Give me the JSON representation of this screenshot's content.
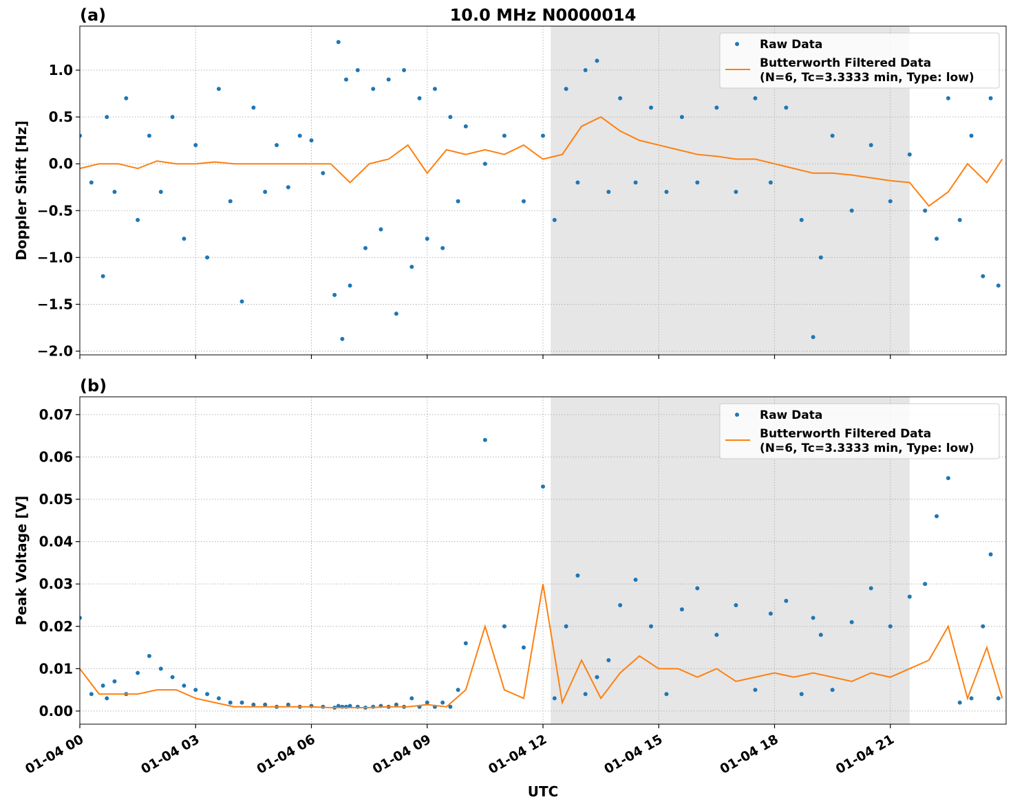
{
  "chart_data": [
    {
      "type": "line",
      "panel_label": "(a)",
      "title": "10.0 MHz N0000014",
      "ylabel": "Doppler Shift [Hz]",
      "xlim": [
        0,
        24
      ],
      "ylim": [
        -2.04,
        1.47
      ],
      "shade": [
        12.2,
        21.5
      ],
      "grid": true,
      "legend": "upper right",
      "show_xtick_labels": false,
      "xticks": [
        {
          "value": 0,
          "label": "01-04 00"
        },
        {
          "value": 3,
          "label": "01-04 03"
        },
        {
          "value": 6,
          "label": "01-04 06"
        },
        {
          "value": 9,
          "label": "01-04 09"
        },
        {
          "value": 12,
          "label": "01-04 12"
        },
        {
          "value": 15,
          "label": "01-04 15"
        },
        {
          "value": 18,
          "label": "01-04 18"
        },
        {
          "value": 21,
          "label": "01-04 21"
        }
      ],
      "yticks": [
        {
          "value": -2.0,
          "label": "−2.0"
        },
        {
          "value": -1.5,
          "label": "−1.5"
        },
        {
          "value": -1.0,
          "label": "−1.0"
        },
        {
          "value": -0.5,
          "label": "−0.5"
        },
        {
          "value": 0.0,
          "label": "0.0"
        },
        {
          "value": 0.5,
          "label": "0.5"
        },
        {
          "value": 1.0,
          "label": "1.0"
        }
      ],
      "series": [
        {
          "name": "Raw Data",
          "color": "#1f77b4",
          "mode": "markers",
          "x": [
            0,
            0.3,
            0.6,
            0.7,
            0.9,
            1.2,
            1.5,
            1.8,
            2.1,
            2.4,
            2.7,
            3.0,
            3.3,
            3.6,
            3.9,
            4.2,
            4.5,
            4.8,
            5.1,
            5.4,
            5.7,
            6.0,
            6.3,
            6.6,
            6.7,
            6.8,
            6.9,
            7.0,
            7.2,
            7.4,
            7.6,
            7.8,
            8.0,
            8.2,
            8.4,
            8.6,
            8.8,
            9.0,
            9.2,
            9.4,
            9.6,
            9.8,
            10.0,
            10.5,
            11.0,
            11.5,
            12.0,
            12.3,
            12.6,
            12.9,
            13.1,
            13.4,
            13.7,
            14.0,
            14.4,
            14.8,
            15.2,
            15.6,
            16.0,
            16.5,
            17.0,
            17.5,
            17.9,
            18.3,
            18.7,
            19.0,
            19.2,
            19.5,
            20.0,
            20.5,
            21.0,
            21.5,
            21.9,
            22.2,
            22.5,
            22.8,
            23.1,
            23.4,
            23.6,
            23.8
          ],
          "values": [
            0.3,
            -0.2,
            -1.2,
            0.5,
            -0.3,
            0.7,
            -0.6,
            0.3,
            -0.3,
            0.5,
            -0.8,
            0.2,
            -1.0,
            0.8,
            -0.4,
            -1.47,
            0.6,
            -0.3,
            0.2,
            -0.25,
            0.3,
            0.25,
            -0.1,
            -1.4,
            1.3,
            -1.87,
            0.9,
            -1.3,
            1.0,
            -0.9,
            0.8,
            -0.7,
            0.9,
            -1.6,
            1.0,
            -1.1,
            0.7,
            -0.8,
            0.8,
            -0.9,
            0.5,
            -0.4,
            0.4,
            0.0,
            0.3,
            -0.4,
            0.3,
            -0.6,
            0.8,
            -0.2,
            1.0,
            1.1,
            -0.3,
            0.7,
            -0.2,
            0.6,
            -0.3,
            0.5,
            -0.2,
            0.6,
            -0.3,
            0.7,
            -0.2,
            0.6,
            -0.6,
            -1.85,
            -1.0,
            0.3,
            -0.5,
            0.2,
            -0.4,
            0.1,
            -0.5,
            -0.8,
            0.7,
            -0.6,
            0.3,
            -1.2,
            0.7,
            -1.3
          ]
        },
        {
          "name": "Butterworth Filtered Data\n(N=6, Tc=3.3333 min, Type: low)",
          "color": "#ff7f0e",
          "mode": "line",
          "x": [
            0,
            0.5,
            1,
            1.5,
            2,
            2.5,
            3,
            3.5,
            4,
            4.5,
            5,
            5.5,
            6,
            6.5,
            7,
            7.5,
            8,
            8.5,
            9,
            9.5,
            10,
            10.5,
            11,
            11.5,
            12,
            12.5,
            13,
            13.5,
            14,
            14.5,
            15,
            15.5,
            16,
            16.5,
            17,
            17.5,
            18,
            18.5,
            19,
            19.5,
            20,
            20.5,
            21,
            21.5,
            22,
            22.5,
            23,
            23.5,
            23.9
          ],
          "values": [
            -0.05,
            0.0,
            0.0,
            -0.05,
            0.03,
            0.0,
            0.0,
            0.02,
            0.0,
            0.0,
            0.0,
            0.0,
            0.0,
            0.0,
            -0.2,
            0.0,
            0.05,
            0.2,
            -0.1,
            0.15,
            0.1,
            0.15,
            0.1,
            0.2,
            0.05,
            0.1,
            0.4,
            0.5,
            0.35,
            0.25,
            0.2,
            0.15,
            0.1,
            0.08,
            0.05,
            0.05,
            0.0,
            -0.05,
            -0.1,
            -0.1,
            -0.12,
            -0.15,
            -0.18,
            -0.2,
            -0.45,
            -0.3,
            0.0,
            -0.2,
            0.05
          ]
        }
      ]
    },
    {
      "type": "line",
      "panel_label": "(b)",
      "ylabel": "Peak Voltage [V]",
      "xlabel": "UTC",
      "xlim": [
        0,
        24
      ],
      "ylim": [
        -0.0031,
        0.0742
      ],
      "shade": [
        12.2,
        21.5
      ],
      "grid": true,
      "legend": "upper right",
      "show_xtick_labels": true,
      "xticks": [
        {
          "value": 0,
          "label": "01-04 00"
        },
        {
          "value": 3,
          "label": "01-04 03"
        },
        {
          "value": 6,
          "label": "01-04 06"
        },
        {
          "value": 9,
          "label": "01-04 09"
        },
        {
          "value": 12,
          "label": "01-04 12"
        },
        {
          "value": 15,
          "label": "01-04 15"
        },
        {
          "value": 18,
          "label": "01-04 18"
        },
        {
          "value": 21,
          "label": "01-04 21"
        }
      ],
      "yticks": [
        {
          "value": 0.0,
          "label": "0.00"
        },
        {
          "value": 0.01,
          "label": "0.01"
        },
        {
          "value": 0.02,
          "label": "0.02"
        },
        {
          "value": 0.03,
          "label": "0.03"
        },
        {
          "value": 0.04,
          "label": "0.04"
        },
        {
          "value": 0.05,
          "label": "0.05"
        },
        {
          "value": 0.06,
          "label": "0.06"
        },
        {
          "value": 0.07,
          "label": "0.07"
        }
      ],
      "series": [
        {
          "name": "Raw Data",
          "color": "#1f77b4",
          "mode": "markers",
          "x": [
            0,
            0.3,
            0.6,
            0.7,
            0.9,
            1.2,
            1.5,
            1.8,
            2.1,
            2.4,
            2.7,
            3.0,
            3.3,
            3.6,
            3.9,
            4.2,
            4.5,
            4.8,
            5.1,
            5.4,
            5.7,
            6.0,
            6.3,
            6.6,
            6.7,
            6.8,
            6.9,
            7.0,
            7.2,
            7.4,
            7.6,
            7.8,
            8.0,
            8.2,
            8.4,
            8.6,
            8.8,
            9.0,
            9.2,
            9.4,
            9.6,
            9.8,
            10.0,
            10.5,
            11.0,
            11.5,
            12.0,
            12.3,
            12.6,
            12.9,
            13.1,
            13.4,
            13.7,
            14.0,
            14.4,
            14.8,
            15.2,
            15.6,
            16.0,
            16.5,
            17.0,
            17.5,
            17.9,
            18.3,
            18.7,
            19.0,
            19.2,
            19.5,
            20.0,
            20.5,
            21.0,
            21.5,
            21.9,
            22.2,
            22.5,
            22.8,
            23.1,
            23.4,
            23.6,
            23.8
          ],
          "values": [
            0.022,
            0.004,
            0.006,
            0.003,
            0.007,
            0.004,
            0.009,
            0.013,
            0.01,
            0.008,
            0.006,
            0.005,
            0.004,
            0.003,
            0.002,
            0.002,
            0.0015,
            0.0015,
            0.001,
            0.0015,
            0.001,
            0.0012,
            0.001,
            0.0008,
            0.0012,
            0.001,
            0.001,
            0.0012,
            0.001,
            0.0008,
            0.001,
            0.0012,
            0.001,
            0.0015,
            0.001,
            0.003,
            0.001,
            0.002,
            0.001,
            0.002,
            0.001,
            0.005,
            0.016,
            0.064,
            0.02,
            0.015,
            0.053,
            0.003,
            0.02,
            0.032,
            0.004,
            0.008,
            0.012,
            0.025,
            0.031,
            0.02,
            0.004,
            0.024,
            0.029,
            0.018,
            0.025,
            0.005,
            0.023,
            0.026,
            0.004,
            0.022,
            0.018,
            0.005,
            0.021,
            0.029,
            0.02,
            0.027,
            0.03,
            0.046,
            0.055,
            0.002,
            0.003,
            0.02,
            0.037,
            0.003
          ]
        },
        {
          "name": "Butterworth Filtered Data\n(N=6, Tc=3.3333 min, Type: low)",
          "color": "#ff7f0e",
          "mode": "line",
          "x": [
            0,
            0.5,
            1,
            1.5,
            2,
            2.5,
            3,
            3.5,
            4,
            4.5,
            5,
            5.5,
            6,
            6.5,
            7,
            7.5,
            8,
            8.5,
            9,
            9.5,
            10,
            10.5,
            11,
            11.5,
            12,
            12.5,
            13,
            13.5,
            14,
            14.5,
            15,
            15.5,
            16,
            16.5,
            17,
            17.5,
            18,
            18.5,
            19,
            19.5,
            20,
            20.5,
            21,
            21.5,
            22,
            22.5,
            23,
            23.5,
            23.9
          ],
          "values": [
            0.01,
            0.004,
            0.004,
            0.004,
            0.005,
            0.005,
            0.003,
            0.002,
            0.001,
            0.001,
            0.001,
            0.001,
            0.001,
            0.0008,
            0.0008,
            0.0008,
            0.001,
            0.001,
            0.0015,
            0.001,
            0.005,
            0.02,
            0.005,
            0.003,
            0.03,
            0.002,
            0.012,
            0.003,
            0.009,
            0.013,
            0.01,
            0.01,
            0.008,
            0.01,
            0.007,
            0.008,
            0.009,
            0.008,
            0.009,
            0.008,
            0.007,
            0.009,
            0.008,
            0.01,
            0.012,
            0.02,
            0.003,
            0.015,
            0.003
          ]
        }
      ]
    }
  ]
}
